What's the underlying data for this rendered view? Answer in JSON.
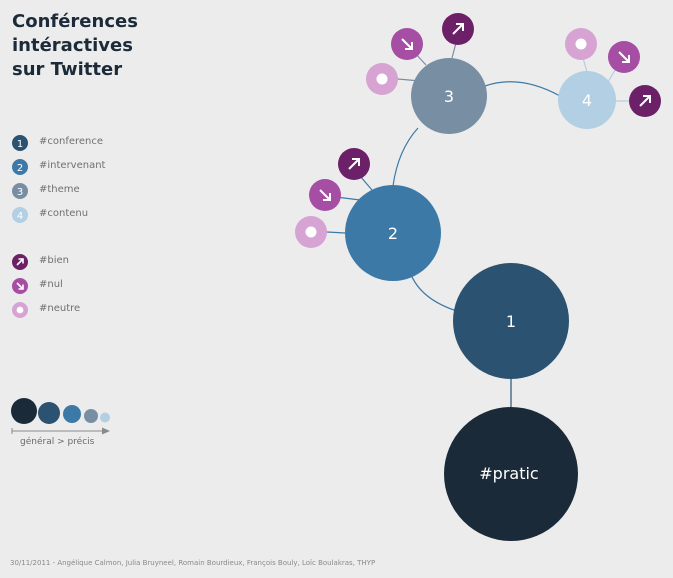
{
  "title": [
    "Conférences",
    "intéractives",
    "sur Twitter"
  ],
  "legend_levels": [
    {
      "num": "1",
      "label": "#conference",
      "color": "#2b5270"
    },
    {
      "num": "2",
      "label": "#intervenant",
      "color": "#3d79a6"
    },
    {
      "num": "3",
      "label": "#theme",
      "color": "#788ea3"
    },
    {
      "num": "4",
      "label": "#contenu",
      "color": "#b2cfe3"
    }
  ],
  "legend_sentiments": [
    {
      "label": "#bien",
      "icon": "arrow-up-right-icon",
      "color": "#6c2067"
    },
    {
      "label": "#nul",
      "icon": "arrow-down-right-icon",
      "color": "#a64da4"
    },
    {
      "label": "#neutre",
      "icon": "circle-dot-icon",
      "color": "#d6a3d3"
    }
  ],
  "scale_colors": [
    "#1b2a38",
    "#2b5270",
    "#3d79a6",
    "#788ea3",
    "#b2cfe3"
  ],
  "scale_label": "général > précis",
  "nodes": {
    "root": "#pratic",
    "n1": "1",
    "n2": "2",
    "n3": "3",
    "n4": "4"
  },
  "footer": "30/11/2011  - Angélique Calmon, Julia Bruyneel, Romain Bourdieux, François Bouly, Loïc Boulakras, THYP"
}
